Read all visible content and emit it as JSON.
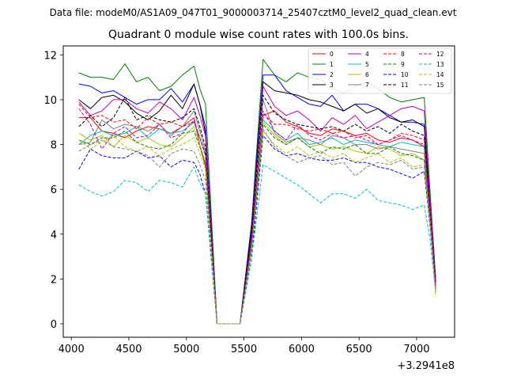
{
  "suptitle": "Data file: modeM0/AS1A09_047T01_9000003714_25407cztM0_level2_quad_clean.evt",
  "chart_data": {
    "type": "line",
    "title": "Quadrant 0 module wise count rates with 100.0s bins.",
    "xlabel": "",
    "ylabel": "",
    "x_offset_label": "+3.2941e8",
    "xlim": [
      3930,
      7330
    ],
    "ylim": [
      -0.6,
      12.4
    ],
    "xticks": [
      4000,
      4500,
      5000,
      5500,
      6000,
      6500,
      7000
    ],
    "yticks": [
      0,
      2,
      4,
      6,
      8,
      10,
      12
    ],
    "grid": false,
    "legend_position": "top-right",
    "x": [
      4066,
      4166,
      4266,
      4366,
      4466,
      4566,
      4666,
      4766,
      4866,
      4966,
      5066,
      5116,
      5166,
      5266,
      5366,
      5466,
      5566,
      5666,
      5766,
      5866,
      5966,
      6066,
      6166,
      6266,
      6366,
      6466,
      6566,
      6666,
      6766,
      6866,
      6966,
      7066,
      7116,
      7166
    ],
    "series": [
      {
        "name": "0",
        "color": "#ff0000",
        "dash": false,
        "values": [
          9.2,
          9.2,
          8.6,
          8.5,
          8.3,
          8.6,
          8.8,
          8.7,
          8.5,
          8.8,
          9.2,
          8.0,
          7.0,
          0.0,
          0.0,
          0.0,
          3.5,
          9.3,
          9.5,
          9.0,
          8.8,
          8.5,
          8.4,
          8.7,
          8.6,
          8.4,
          8.5,
          8.2,
          8.1,
          8.3,
          8.2,
          7.9,
          5.0,
          1.8
        ]
      },
      {
        "name": "1",
        "color": "#008000",
        "dash": false,
        "values": [
          11.2,
          11.0,
          11.0,
          10.9,
          11.6,
          10.8,
          11.0,
          10.4,
          10.6,
          11.1,
          11.5,
          10.5,
          9.8,
          0.0,
          0.0,
          0.0,
          4.5,
          11.8,
          11.1,
          10.8,
          11.2,
          11.0,
          10.9,
          10.5,
          10.3,
          10.6,
          10.8,
          10.5,
          10.1,
          9.9,
          10.0,
          10.1,
          6.0,
          2.0
        ]
      },
      {
        "name": "2",
        "color": "#0000ff",
        "dash": false,
        "values": [
          10.7,
          10.6,
          10.3,
          10.4,
          10.1,
          9.8,
          10.0,
          10.0,
          10.5,
          9.9,
          10.7,
          9.8,
          8.8,
          0.0,
          0.0,
          0.0,
          4.4,
          11.1,
          11.1,
          10.4,
          10.1,
          9.8,
          9.7,
          10.2,
          9.5,
          9.8,
          9.8,
          9.6,
          9.3,
          9.0,
          9.0,
          8.9,
          5.5,
          1.9
        ]
      },
      {
        "name": "3",
        "color": "#000000",
        "dash": false,
        "values": [
          10.0,
          9.6,
          10.1,
          10.2,
          9.9,
          9.4,
          9.1,
          9.5,
          10.2,
          9.6,
          10.7,
          9.8,
          8.5,
          0.0,
          0.0,
          0.0,
          4.2,
          10.8,
          10.4,
          10.3,
          10.2,
          10.0,
          9.9,
          9.7,
          9.5,
          9.8,
          9.4,
          9.6,
          9.2,
          9.0,
          9.1,
          8.8,
          5.4,
          1.9
        ]
      },
      {
        "name": "4",
        "color": "#bf00bf",
        "dash": false,
        "values": [
          9.9,
          9.3,
          9.5,
          10.0,
          10.0,
          9.6,
          9.4,
          9.9,
          9.6,
          9.1,
          10.1,
          9.3,
          8.4,
          0.0,
          0.0,
          0.0,
          4.0,
          10.6,
          9.7,
          9.3,
          9.5,
          9.1,
          8.6,
          9.2,
          8.9,
          9.3,
          8.7,
          9.0,
          9.3,
          9.6,
          9.7,
          9.5,
          5.6,
          1.9
        ]
      },
      {
        "name": "5",
        "color": "#00bfbf",
        "dash": false,
        "values": [
          8.0,
          8.4,
          8.6,
          8.4,
          8.5,
          8.8,
          8.3,
          8.7,
          8.5,
          8.6,
          9.0,
          8.3,
          7.5,
          0.0,
          0.0,
          0.0,
          3.6,
          9.1,
          8.6,
          8.2,
          8.5,
          8.0,
          8.1,
          8.3,
          8.0,
          8.2,
          8.1,
          8.0,
          7.9,
          8.1,
          8.0,
          7.9,
          4.9,
          1.7
        ]
      },
      {
        "name": "6",
        "color": "#bfbf00",
        "dash": false,
        "values": [
          8.5,
          8.2,
          8.4,
          7.9,
          8.4,
          8.1,
          8.3,
          8.0,
          7.9,
          8.3,
          8.8,
          8.0,
          7.2,
          0.0,
          0.0,
          0.0,
          3.5,
          9.0,
          8.4,
          8.0,
          8.3,
          7.9,
          8.0,
          7.8,
          7.9,
          7.7,
          7.6,
          7.9,
          7.8,
          7.5,
          7.6,
          7.3,
          4.8,
          1.6
        ]
      },
      {
        "name": "7",
        "color": "#808080",
        "dash": false,
        "values": [
          8.0,
          8.1,
          9.1,
          8.7,
          8.9,
          8.8,
          8.6,
          8.9,
          8.4,
          8.8,
          9.5,
          8.6,
          7.7,
          0.0,
          0.0,
          0.0,
          3.6,
          10.0,
          8.5,
          8.1,
          8.3,
          8.2,
          8.0,
          8.4,
          8.3,
          8.0,
          8.0,
          7.8,
          7.9,
          7.8,
          7.7,
          7.6,
          4.8,
          1.7
        ]
      },
      {
        "name": "8",
        "color": "#ff0000",
        "dash": true,
        "values": [
          9.8,
          9.2,
          9.3,
          9.0,
          9.1,
          8.7,
          9.2,
          8.9,
          9.0,
          8.8,
          9.0,
          8.3,
          7.6,
          0.0,
          0.0,
          0.0,
          3.8,
          9.4,
          8.9,
          8.9,
          8.7,
          8.6,
          8.7,
          8.5,
          8.6,
          8.3,
          8.4,
          8.0,
          8.2,
          8.5,
          8.4,
          8.2,
          5.0,
          1.7
        ]
      },
      {
        "name": "9",
        "color": "#008000",
        "dash": true,
        "values": [
          8.2,
          8.0,
          8.3,
          8.3,
          8.6,
          8.1,
          7.9,
          7.8,
          8.0,
          8.5,
          8.6,
          7.9,
          7.1,
          0.0,
          0.0,
          0.0,
          3.4,
          8.9,
          8.3,
          8.0,
          8.3,
          7.9,
          7.6,
          7.9,
          7.8,
          8.0,
          7.6,
          7.6,
          7.9,
          7.6,
          7.5,
          7.3,
          4.7,
          1.6
        ]
      },
      {
        "name": "10",
        "color": "#0000ff",
        "dash": true,
        "values": [
          6.9,
          7.8,
          7.5,
          7.4,
          7.4,
          7.7,
          7.4,
          7.5,
          7.0,
          7.3,
          7.2,
          6.7,
          5.8,
          0.0,
          0.0,
          0.0,
          2.9,
          8.4,
          7.8,
          7.5,
          7.6,
          7.4,
          7.3,
          7.3,
          7.4,
          7.2,
          7.2,
          7.0,
          6.9,
          6.7,
          6.5,
          6.8,
          4.4,
          1.5
        ]
      },
      {
        "name": "11",
        "color": "#000000",
        "dash": true,
        "values": [
          8.8,
          9.3,
          8.8,
          9.2,
          10.1,
          9.1,
          9.3,
          9.1,
          9.0,
          9.2,
          9.6,
          8.8,
          7.9,
          0.0,
          0.0,
          0.0,
          3.9,
          10.2,
          9.4,
          9.1,
          8.9,
          8.8,
          8.7,
          8.8,
          8.6,
          8.9,
          8.6,
          8.8,
          8.5,
          8.9,
          8.6,
          8.4,
          5.1,
          1.8
        ]
      },
      {
        "name": "12",
        "color": "#bf00bf",
        "dash": true,
        "values": [
          9.6,
          8.9,
          7.8,
          8.5,
          8.8,
          8.3,
          8.4,
          8.9,
          8.3,
          8.5,
          9.1,
          8.3,
          7.5,
          0.0,
          0.0,
          0.0,
          3.7,
          9.5,
          8.6,
          8.2,
          8.9,
          8.4,
          8.2,
          8.5,
          8.3,
          8.4,
          8.2,
          8.0,
          8.2,
          8.4,
          8.2,
          8.0,
          5.0,
          1.7
        ]
      },
      {
        "name": "13",
        "color": "#00bfbf",
        "dash": true,
        "values": [
          6.2,
          5.9,
          5.7,
          5.9,
          6.4,
          6.3,
          5.9,
          6.4,
          6.3,
          6.1,
          7.0,
          6.3,
          5.8,
          0.0,
          0.0,
          0.0,
          2.9,
          7.1,
          6.8,
          6.5,
          6.2,
          5.8,
          5.4,
          5.8,
          5.8,
          5.6,
          6.0,
          5.5,
          5.4,
          5.3,
          5.1,
          5.3,
          3.8,
          1.4
        ]
      },
      {
        "name": "14",
        "color": "#bfbf00",
        "dash": true,
        "values": [
          8.2,
          7.8,
          8.1,
          8.4,
          7.9,
          7.7,
          7.9,
          7.5,
          7.8,
          8.0,
          8.3,
          7.6,
          6.9,
          0.0,
          0.0,
          0.0,
          3.3,
          8.6,
          8.0,
          7.6,
          7.9,
          7.5,
          7.7,
          7.4,
          7.6,
          7.2,
          7.4,
          7.6,
          7.2,
          7.4,
          7.0,
          7.1,
          4.6,
          1.2
        ]
      },
      {
        "name": "15",
        "color": "#808080",
        "dash": true,
        "values": [
          7.7,
          8.0,
          8.2,
          7.9,
          7.8,
          7.7,
          7.5,
          7.0,
          7.6,
          7.8,
          7.7,
          7.1,
          6.4,
          0.0,
          0.0,
          0.0,
          3.2,
          8.7,
          7.9,
          7.5,
          7.2,
          7.4,
          7.5,
          7.1,
          7.2,
          6.6,
          7.0,
          7.2,
          7.1,
          7.3,
          6.9,
          7.0,
          4.5,
          1.5
        ]
      }
    ]
  }
}
